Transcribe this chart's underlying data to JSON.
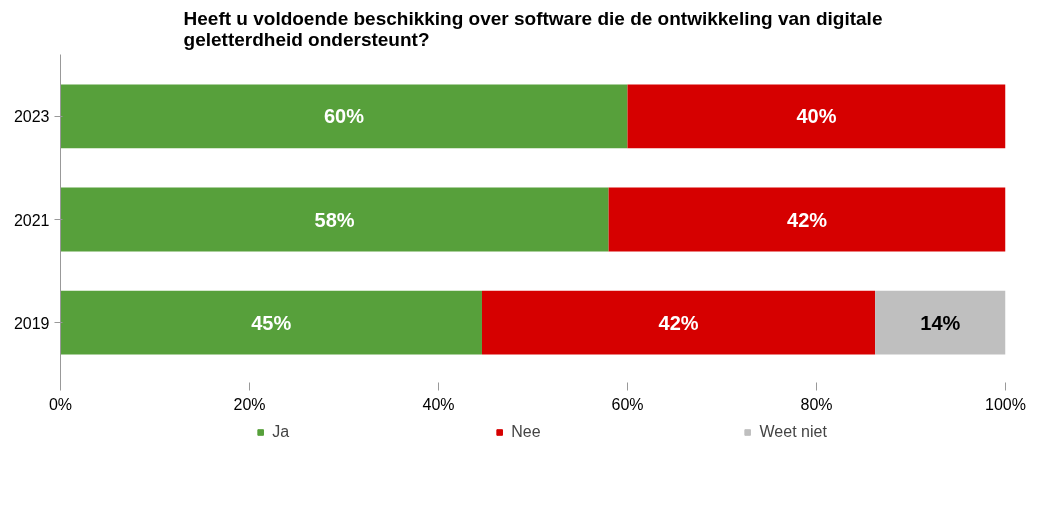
{
  "chart_data": {
    "type": "bar",
    "orientation": "horizontal",
    "stacked": true,
    "title": "Heeft u voldoende beschikking over software die de ontwikkeling van digitale geletterdheid ondersteunt?",
    "categories": [
      "2023",
      "2021",
      "2019"
    ],
    "series": [
      {
        "name": "Ja",
        "color": "#57a03b",
        "values": [
          60,
          58,
          44.6
        ],
        "value_labels": [
          "60%",
          "58%",
          "45%"
        ]
      },
      {
        "name": "Nee",
        "color": "#d60000",
        "values": [
          40,
          42,
          41.6
        ],
        "value_labels": [
          "40%",
          "42%",
          "42%"
        ]
      },
      {
        "name": "Weet niet",
        "color": "#bfbfbf",
        "values": [
          null,
          null,
          13.8
        ],
        "value_labels": [
          null,
          null,
          "14%"
        ]
      }
    ],
    "xlim": [
      0,
      100
    ],
    "xticks": [
      {
        "value": 0,
        "label": "0%"
      },
      {
        "value": 20,
        "label": "20%"
      },
      {
        "value": 40,
        "label": "40%"
      },
      {
        "value": 60,
        "label": "60%"
      },
      {
        "value": 80,
        "label": "80%"
      },
      {
        "value": 100,
        "label": "100%"
      }
    ],
    "grid": false,
    "legend": "bottom"
  }
}
